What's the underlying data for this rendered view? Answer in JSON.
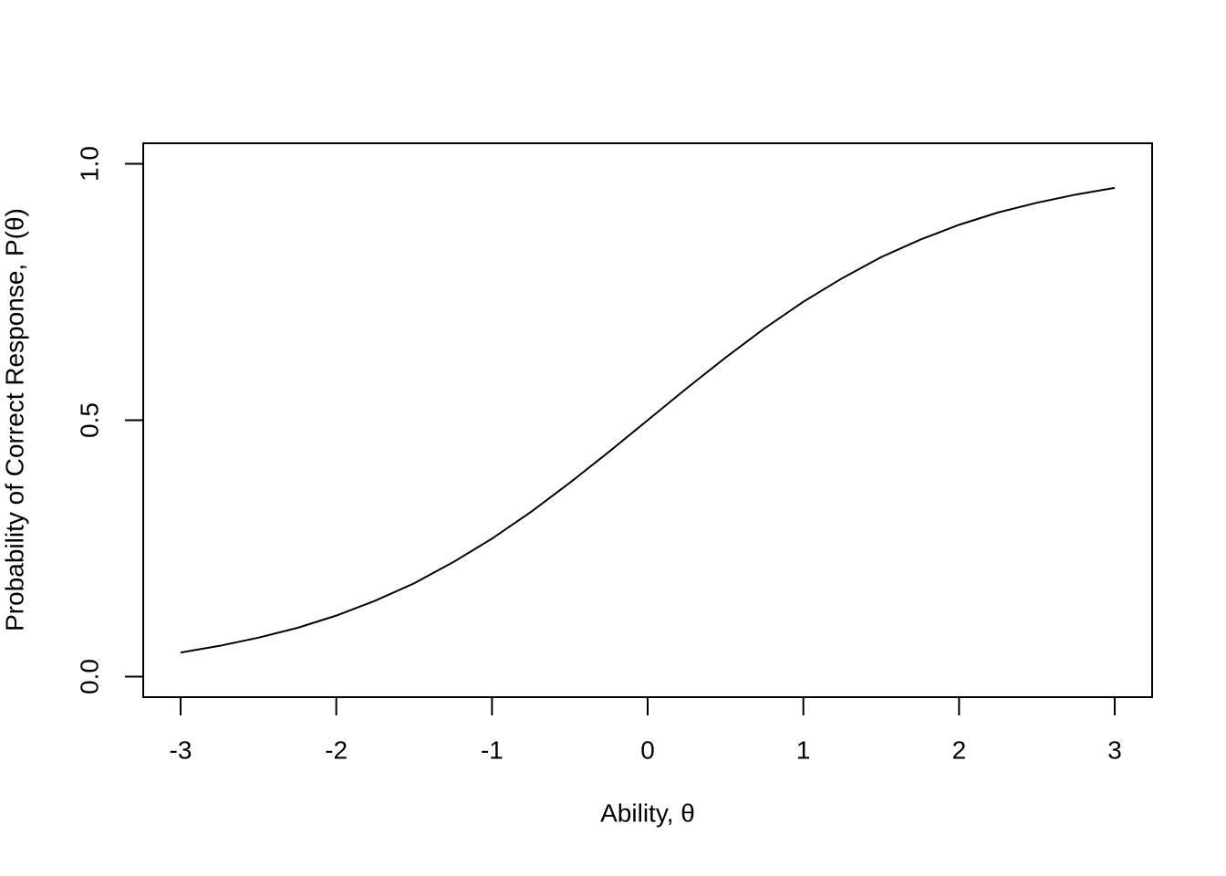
{
  "chart_data": {
    "type": "line",
    "x_label": "Ability, θ",
    "y_label": "Probability of Correct Response, P(θ)",
    "x": [
      -3,
      -2.75,
      -2.5,
      -2.25,
      -2,
      -1.75,
      -1.5,
      -1.25,
      -1,
      -0.75,
      -0.5,
      -0.25,
      0,
      0.25,
      0.5,
      0.75,
      1,
      1.25,
      1.5,
      1.75,
      2,
      2.25,
      2.5,
      2.75,
      3
    ],
    "series": [
      {
        "color": "#000000",
        "values": [
          0.047,
          0.06,
          0.076,
          0.095,
          0.119,
          0.148,
          0.182,
          0.223,
          0.269,
          0.321,
          0.378,
          0.438,
          0.5,
          0.562,
          0.622,
          0.679,
          0.731,
          0.777,
          0.818,
          0.852,
          0.881,
          0.905,
          0.924,
          0.94,
          0.953
        ]
      }
    ],
    "xlim": [
      -3.24,
      3.24
    ],
    "ylim": [
      -0.04,
      1.04
    ],
    "xticks": [
      -3,
      -2,
      -1,
      0,
      1,
      2,
      3
    ],
    "yticks": [
      {
        "value": 0,
        "label": "0.0"
      },
      {
        "value": 0.5,
        "label": "0.5"
      },
      {
        "value": 1,
        "label": "1.0"
      }
    ],
    "grid": false
  }
}
